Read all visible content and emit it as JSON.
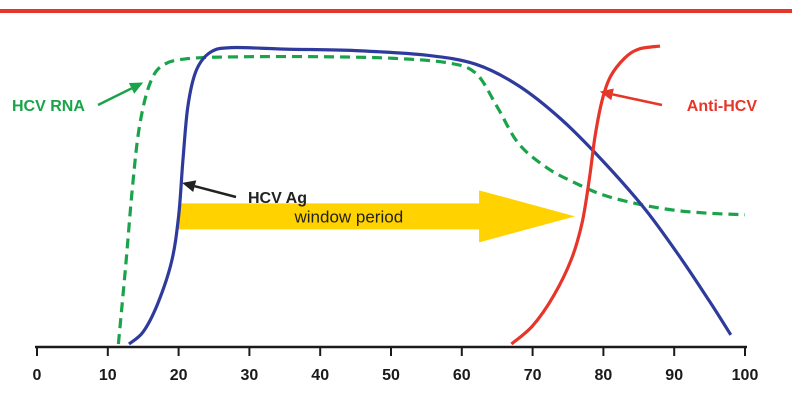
{
  "chart_data": {
    "type": "line",
    "title": "",
    "xlabel": "",
    "ylabel": "",
    "xlim": [
      0,
      100
    ],
    "x_ticks": [
      0,
      10,
      20,
      30,
      40,
      50,
      60,
      70,
      80,
      90,
      100
    ],
    "y_axis_shown": false,
    "y_scale": "relative level (unlabeled)",
    "series": [
      {
        "name": "HCV RNA",
        "color": "#1aa34a",
        "dash": "dashed",
        "points": [
          [
            11.5,
            0
          ],
          [
            12.5,
            0.25
          ],
          [
            13.5,
            0.52
          ],
          [
            14.5,
            0.72
          ],
          [
            16,
            0.86
          ],
          [
            18,
            0.92
          ],
          [
            22,
            0.94
          ],
          [
            30,
            0.945
          ],
          [
            40,
            0.945
          ],
          [
            50,
            0.94
          ],
          [
            58,
            0.925
          ],
          [
            62,
            0.89
          ],
          [
            65,
            0.78
          ],
          [
            68,
            0.66
          ],
          [
            72,
            0.58
          ],
          [
            76,
            0.53
          ],
          [
            80,
            0.49
          ],
          [
            85,
            0.46
          ],
          [
            90,
            0.44
          ],
          [
            95,
            0.43
          ],
          [
            100,
            0.425
          ]
        ]
      },
      {
        "name": "HCV Ag",
        "color": "#2f3b9c",
        "dash": "solid",
        "points": [
          [
            13,
            0
          ],
          [
            15,
            0.04
          ],
          [
            17,
            0.13
          ],
          [
            19,
            0.27
          ],
          [
            20,
            0.42
          ],
          [
            20.6,
            0.6
          ],
          [
            21.3,
            0.78
          ],
          [
            22.5,
            0.9
          ],
          [
            24.5,
            0.96
          ],
          [
            27.5,
            0.975
          ],
          [
            35,
            0.97
          ],
          [
            45,
            0.965
          ],
          [
            55,
            0.95
          ],
          [
            62,
            0.92
          ],
          [
            68,
            0.85
          ],
          [
            74,
            0.74
          ],
          [
            80,
            0.6
          ],
          [
            86,
            0.44
          ],
          [
            91,
            0.28
          ],
          [
            95,
            0.14
          ],
          [
            98,
            0.03
          ]
        ]
      },
      {
        "name": "Anti-HCV",
        "color": "#e63529",
        "dash": "solid",
        "points": [
          [
            67,
            0
          ],
          [
            70,
            0.06
          ],
          [
            73,
            0.16
          ],
          [
            75.5,
            0.28
          ],
          [
            77,
            0.4
          ],
          [
            78,
            0.54
          ],
          [
            78.8,
            0.68
          ],
          [
            79.8,
            0.8
          ],
          [
            81,
            0.88
          ],
          [
            83,
            0.94
          ],
          [
            85,
            0.97
          ],
          [
            88,
            0.98
          ]
        ]
      }
    ],
    "annotations": [
      {
        "text": "window period",
        "type": "arrow",
        "x_start": 20,
        "x_end": 76,
        "level": 0.42,
        "color": "#ffd200"
      },
      {
        "text": "HCV RNA",
        "type": "label-arrow",
        "points_to": [
          15,
          0.86
        ],
        "color": "#1aa34a"
      },
      {
        "text": "HCV Ag",
        "type": "label-arrow",
        "points_to": [
          20.5,
          0.53
        ],
        "color": "#222222"
      },
      {
        "text": "Anti-HCV",
        "type": "label-arrow",
        "points_to": [
          79.5,
          0.83
        ],
        "color": "#e63529"
      }
    ],
    "grid": false,
    "legend": "none",
    "top_rule_color": "#e63529"
  }
}
